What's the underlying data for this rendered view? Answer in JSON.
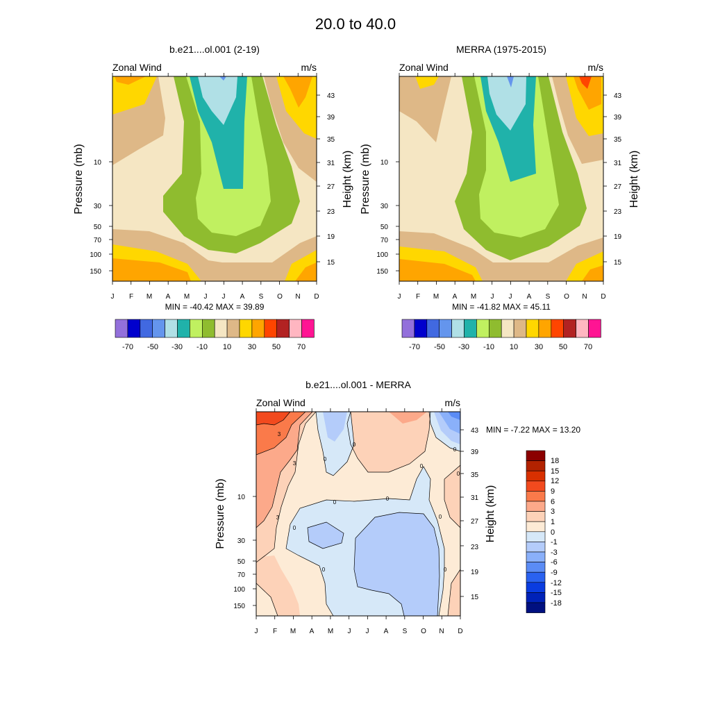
{
  "figure_title": "20.0 to  40.0",
  "chart_data": [
    {
      "type": "heatmap",
      "title": "b.e21....ol.001 (2-19)",
      "left_string": "Zonal Wind",
      "right_string": "m/s",
      "ylabel": "Pressure (mb)",
      "ylabel_right": "Height (km)",
      "x_tick_labels": [
        "J",
        "F",
        "M",
        "A",
        "M",
        "J",
        "J",
        "A",
        "S",
        "O",
        "N",
        "D"
      ],
      "y_tick_labels": [
        "10",
        "30",
        "50",
        "70",
        "100",
        "150"
      ],
      "y_right_tick_labels": [
        "43",
        "39",
        "35",
        "31",
        "27",
        "23",
        "19",
        "15"
      ],
      "stats": "MIN = -40.42  MAX =  39.89",
      "colorbar": {
        "colors": [
          "#9370db",
          "#0000cd",
          "#4169e1",
          "#6495ed",
          "#b0e0e6",
          "#20b2aa",
          "#c0f060",
          "#8fbc2f",
          "#f5e6c3",
          "#deb887",
          "#ffd700",
          "#ffa500",
          "#ff4500",
          "#b22222",
          "#ffb6c1",
          "#ff1493"
        ],
        "labels": [
          "-70",
          "-50",
          "-30",
          "-10",
          "10",
          "30",
          "50",
          "70"
        ]
      }
    },
    {
      "type": "heatmap",
      "title": "MERRA (1975-2015)",
      "left_string": "Zonal Wind",
      "right_string": "m/s",
      "ylabel": "Pressure (mb)",
      "ylabel_right": "Height (km)",
      "x_tick_labels": [
        "J",
        "F",
        "M",
        "A",
        "M",
        "J",
        "J",
        "A",
        "S",
        "O",
        "N",
        "D"
      ],
      "y_tick_labels": [
        "10",
        "30",
        "50",
        "70",
        "100",
        "150"
      ],
      "y_right_tick_labels": [
        "43",
        "39",
        "35",
        "31",
        "27",
        "23",
        "19",
        "15"
      ],
      "stats": "MIN = -41.82  MAX =  45.11",
      "colorbar": {
        "colors": [
          "#9370db",
          "#0000cd",
          "#4169e1",
          "#6495ed",
          "#b0e0e6",
          "#20b2aa",
          "#c0f060",
          "#8fbc2f",
          "#f5e6c3",
          "#deb887",
          "#ffd700",
          "#ffa500",
          "#ff4500",
          "#b22222",
          "#ffb6c1",
          "#ff1493"
        ],
        "labels": [
          "-70",
          "-50",
          "-30",
          "-10",
          "10",
          "30",
          "50",
          "70"
        ]
      }
    },
    {
      "type": "heatmap",
      "title": "b.e21....ol.001 - MERRA",
      "left_string": "Zonal Wind",
      "right_string": "m/s",
      "ylabel": "Pressure (mb)",
      "ylabel_right": "Height (km)",
      "x_tick_labels": [
        "J",
        "F",
        "M",
        "A",
        "M",
        "J",
        "J",
        "A",
        "S",
        "O",
        "N",
        "D"
      ],
      "y_tick_labels": [
        "10",
        "30",
        "50",
        "70",
        "100",
        "150"
      ],
      "y_right_tick_labels": [
        "43",
        "39",
        "35",
        "31",
        "27",
        "23",
        "19",
        "15"
      ],
      "stats": "MIN =  -7.22  MAX =  13.20",
      "contour_labels": [
        "3",
        "3",
        "3",
        "0",
        "0",
        "0",
        "0",
        "0",
        "0",
        "0",
        "0",
        "0",
        "0",
        "0"
      ],
      "colorbar": {
        "colors": [
          "#8b0000",
          "#b22200",
          "#d83000",
          "#f24a1e",
          "#fa7a4a",
          "#fca98a",
          "#fdd2b8",
          "#fdebd6",
          "#d6e8f8",
          "#b4ccfa",
          "#8ab0fa",
          "#5b8cf5",
          "#2a62f0",
          "#0a3ce0",
          "#0022b8",
          "#001080"
        ],
        "labels": [
          "18",
          "15",
          "12",
          "9",
          "6",
          "3",
          "1",
          "0",
          "-1",
          "-3",
          "-6",
          "-9",
          "-12",
          "-15",
          "-18"
        ]
      }
    }
  ]
}
